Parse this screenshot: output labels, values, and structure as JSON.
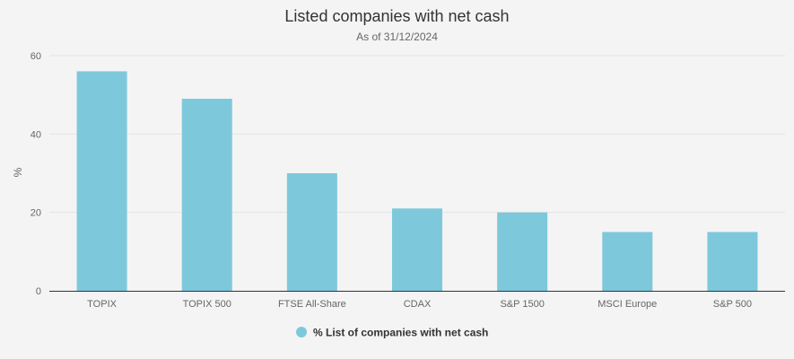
{
  "chart_data": {
    "type": "bar",
    "title": "Listed companies with net cash",
    "subtitle": "As of 31/12/2024",
    "xlabel": "",
    "ylabel": "%",
    "categories": [
      "TOPIX",
      "TOPIX 500",
      "FTSE All-Share",
      "CDAX",
      "S&P 1500",
      "MSCI Europe",
      "S&P 500"
    ],
    "series": [
      {
        "name": "% List of companies with net cash",
        "values": [
          56,
          49,
          30,
          21,
          20,
          15,
          15
        ],
        "color": "#7ec8dc"
      }
    ],
    "ylim": [
      0,
      60
    ],
    "yticks": [
      "0",
      "20",
      "40",
      "60"
    ],
    "grid": true,
    "legend_position": "bottom-center"
  }
}
